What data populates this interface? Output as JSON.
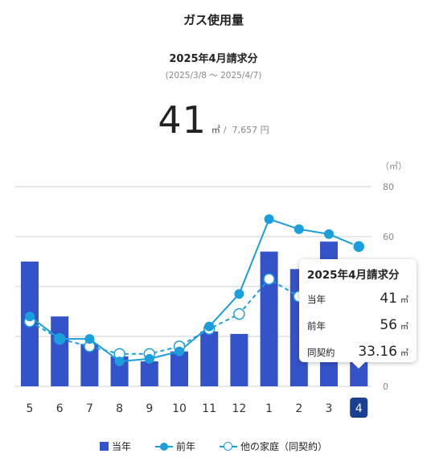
{
  "header": {
    "title": "ガス使用量",
    "period_title": "2025年4月請求分",
    "period_range": "(2025/3/8 〜 2025/4/7)"
  },
  "usage": {
    "value": "41",
    "unit": "㎥",
    "separator": "/",
    "price": "7,657 円"
  },
  "chart_data": {
    "type": "bar",
    "categories": [
      "5",
      "6",
      "7",
      "8",
      "9",
      "10",
      "11",
      "12",
      "1",
      "2",
      "3",
      "4"
    ],
    "unit_label": "（㎥）",
    "ylim": [
      0,
      80
    ],
    "yticks": [
      0,
      20,
      40,
      60,
      80
    ],
    "grid": true,
    "selected_category": "4",
    "series": [
      {
        "name": "当年",
        "type": "bar",
        "values": [
          50,
          28,
          17,
          12,
          10,
          14,
          22,
          21,
          54,
          47,
          58,
          41
        ]
      },
      {
        "name": "前年",
        "type": "line",
        "values": [
          28,
          19,
          19,
          10,
          11,
          14,
          24,
          37,
          67,
          63,
          61,
          56
        ]
      },
      {
        "name": "他の家庭（同契約）",
        "type": "dashed-line",
        "values": [
          26,
          19,
          16,
          13,
          13,
          16,
          23,
          29,
          43,
          36,
          34,
          33.16
        ]
      }
    ],
    "colors": {
      "bar": "#3553c8",
      "line": "#1a9fdc",
      "grid": "#cfcfcf",
      "axis_text": "#888888"
    }
  },
  "tooltip": {
    "title": "2025年4月請求分",
    "rows": [
      {
        "label": "当年",
        "value": "41",
        "unit": "㎥"
      },
      {
        "label": "前年",
        "value": "56",
        "unit": "㎥"
      },
      {
        "label": "同契約",
        "value": "33.16",
        "unit": "㎥"
      }
    ]
  },
  "legend": {
    "items": [
      "当年",
      "前年",
      "他の家庭（同契約）"
    ]
  }
}
